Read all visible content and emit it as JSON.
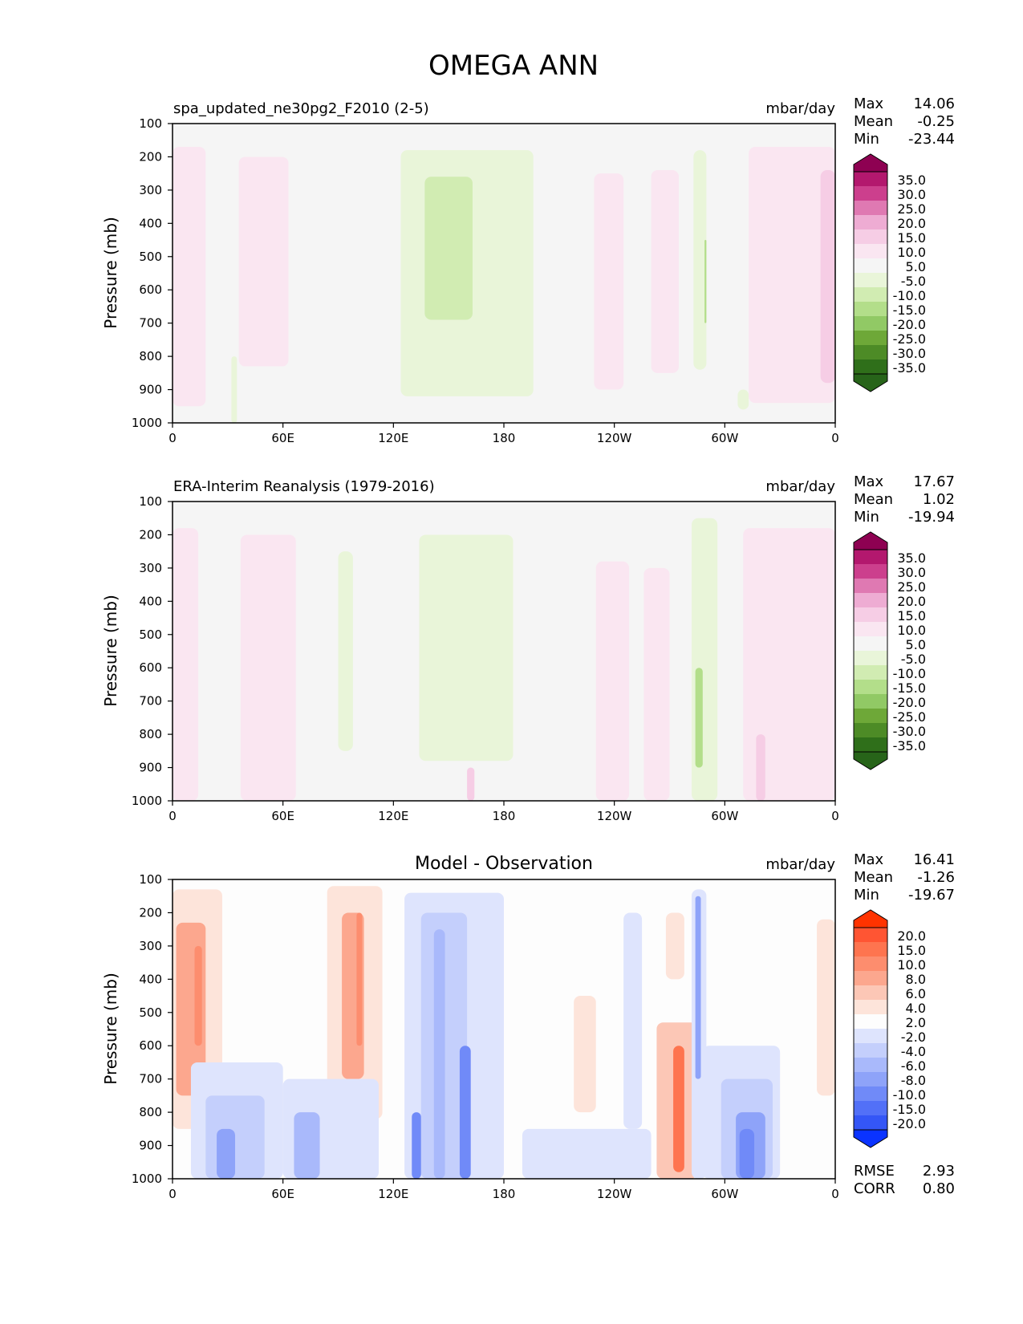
{
  "title": "OMEGA ANN",
  "axis": {
    "xticks": [
      "0",
      "60E",
      "120E",
      "180",
      "120W",
      "60W",
      "0"
    ],
    "yticks": [
      "100",
      "200",
      "300",
      "400",
      "500",
      "600",
      "700",
      "800",
      "900",
      "1000"
    ],
    "ylabel": "Pressure (mb)"
  },
  "chart_data": [
    {
      "type": "heatmap",
      "title": "spa_updated_ne30pg2_F2010 (2-5)",
      "units": "mbar/day",
      "stats": {
        "max": "14.06",
        "mean": "-0.25",
        "min": "-23.44"
      },
      "stat_labels": {
        "max": "Max",
        "mean": "Mean",
        "min": "Min"
      },
      "x_range_deg": [
        0,
        360
      ],
      "y_range_mb": [
        100,
        1000
      ],
      "colorbar": {
        "levels": [
          "35.0",
          "30.0",
          "25.0",
          "20.0",
          "15.0",
          "10.0",
          "5.0",
          "-5.0",
          "-10.0",
          "-15.0",
          "-20.0",
          "-25.0",
          "-30.0",
          "-35.0"
        ],
        "colors": [
          "#8e0152",
          "#b3186e",
          "#cc3f8d",
          "#df79b2",
          "#eeacd3",
          "#f6cde5",
          "#fae6f1",
          "#f5f5f5",
          "#e9f5d9",
          "#d1ecb2",
          "#b3de8a",
          "#91c965",
          "#6ea838",
          "#4d8b26",
          "#2f6f1a",
          "#276419"
        ]
      },
      "regions": [
        {
          "lon": [
            0,
            13
          ],
          "p": [
            200,
            820
          ],
          "v": 12
        },
        {
          "lon": [
            0,
            18
          ],
          "p": [
            170,
            950
          ],
          "v": 7
        },
        {
          "lon": [
            36,
            63
          ],
          "p": [
            200,
            830
          ],
          "v": 7
        },
        {
          "lon": [
            124,
            196
          ],
          "p": [
            180,
            920
          ],
          "v": -7
        },
        {
          "lon": [
            137,
            163
          ],
          "p": [
            260,
            690
          ],
          "v": -12
        },
        {
          "lon": [
            32,
            35
          ],
          "p": [
            800,
            1000
          ],
          "v": -7
        },
        {
          "lon": [
            229,
            245
          ],
          "p": [
            250,
            900
          ],
          "v": 7
        },
        {
          "lon": [
            260,
            275
          ],
          "p": [
            240,
            850
          ],
          "v": 7
        },
        {
          "lon": [
            283,
            290
          ],
          "p": [
            180,
            840
          ],
          "v": -7
        },
        {
          "lon": [
            289,
            290
          ],
          "p": [
            450,
            700
          ],
          "v": -16
        },
        {
          "lon": [
            307,
            313
          ],
          "p": [
            900,
            960
          ],
          "v": -7
        },
        {
          "lon": [
            313,
            360
          ],
          "p": [
            170,
            940
          ],
          "v": 7
        },
        {
          "lon": [
            352,
            360
          ],
          "p": [
            240,
            880
          ],
          "v": 12
        }
      ]
    },
    {
      "type": "heatmap",
      "title": "ERA-Interim Reanalysis (1979-2016)",
      "units": "mbar/day",
      "stats": {
        "max": "17.67",
        "mean": "1.02",
        "min": "-19.94"
      },
      "stat_labels": {
        "max": "Max",
        "mean": "Mean",
        "min": "Min"
      },
      "x_range_deg": [
        0,
        360
      ],
      "y_range_mb": [
        100,
        1000
      ],
      "colorbar": {
        "levels": [
          "35.0",
          "30.0",
          "25.0",
          "20.0",
          "15.0",
          "10.0",
          "5.0",
          "-5.0",
          "-10.0",
          "-15.0",
          "-20.0",
          "-25.0",
          "-30.0",
          "-35.0"
        ],
        "colors": [
          "#8e0152",
          "#b3186e",
          "#cc3f8d",
          "#df79b2",
          "#eeacd3",
          "#f6cde5",
          "#fae6f1",
          "#f5f5f5",
          "#e9f5d9",
          "#d1ecb2",
          "#b3de8a",
          "#91c965",
          "#6ea838",
          "#4d8b26",
          "#2f6f1a",
          "#276419"
        ]
      },
      "regions": [
        {
          "lon": [
            0,
            14
          ],
          "p": [
            180,
            1000
          ],
          "v": 7
        },
        {
          "lon": [
            37,
            67
          ],
          "p": [
            200,
            1000
          ],
          "v": 7
        },
        {
          "lon": [
            90,
            98
          ],
          "p": [
            250,
            850
          ],
          "v": -7
        },
        {
          "lon": [
            134,
            185
          ],
          "p": [
            200,
            880
          ],
          "v": -7
        },
        {
          "lon": [
            230,
            248
          ],
          "p": [
            280,
            1000
          ],
          "v": 7
        },
        {
          "lon": [
            256,
            270
          ],
          "p": [
            300,
            1000
          ],
          "v": 7
        },
        {
          "lon": [
            282,
            296
          ],
          "p": [
            150,
            1000
          ],
          "v": -7
        },
        {
          "lon": [
            284,
            288
          ],
          "p": [
            600,
            900
          ],
          "v": -16
        },
        {
          "lon": [
            310,
            360
          ],
          "p": [
            180,
            1000
          ],
          "v": 7
        },
        {
          "lon": [
            317,
            322
          ],
          "p": [
            800,
            1000
          ],
          "v": 12
        },
        {
          "lon": [
            160,
            164
          ],
          "p": [
            900,
            1000
          ],
          "v": 12
        }
      ]
    },
    {
      "type": "heatmap",
      "title": "Model - Observation",
      "units": "mbar/day",
      "stats": {
        "max": "16.41",
        "mean": "-1.26",
        "min": "-19.67"
      },
      "stat_labels": {
        "max": "Max",
        "mean": "Mean",
        "min": "Min"
      },
      "metrics": {
        "rmse": "2.93",
        "corr": "0.80"
      },
      "metric_labels": {
        "rmse": "RMSE",
        "corr": "CORR"
      },
      "x_range_deg": [
        0,
        360
      ],
      "y_range_mb": [
        100,
        1000
      ],
      "colorbar": {
        "levels": [
          "20.0",
          "15.0",
          "10.0",
          "8.0",
          "6.0",
          "4.0",
          "2.0",
          "-2.0",
          "-4.0",
          "-6.0",
          "-8.0",
          "-10.0",
          "-15.0",
          "-20.0"
        ],
        "colors": [
          "#ff3300",
          "#ff5533",
          "#fe744f",
          "#fd8d6e",
          "#fca78e",
          "#fcc7b6",
          "#fde4da",
          "#fdfdfd",
          "#dee4fd",
          "#c4cffc",
          "#a9b9fb",
          "#8ea3f9",
          "#708af8",
          "#5270f7",
          "#3456f6",
          "#0a33ff"
        ]
      },
      "regions": [
        {
          "lon": [
            0,
            27
          ],
          "p": [
            130,
            850
          ],
          "v": 3
        },
        {
          "lon": [
            2,
            18
          ],
          "p": [
            230,
            750
          ],
          "v": 7
        },
        {
          "lon": [
            12,
            16
          ],
          "p": [
            300,
            600
          ],
          "v": 9
        },
        {
          "lon": [
            84,
            114
          ],
          "p": [
            120,
            820
          ],
          "v": 3
        },
        {
          "lon": [
            92,
            104
          ],
          "p": [
            200,
            700
          ],
          "v": 7
        },
        {
          "lon": [
            100,
            103
          ],
          "p": [
            200,
            600
          ],
          "v": 9
        },
        {
          "lon": [
            126,
            180
          ],
          "p": [
            140,
            1000
          ],
          "v": -3
        },
        {
          "lon": [
            135,
            160
          ],
          "p": [
            200,
            1000
          ],
          "v": -5
        },
        {
          "lon": [
            142,
            148
          ],
          "p": [
            250,
            1000
          ],
          "v": -7
        },
        {
          "lon": [
            156,
            162
          ],
          "p": [
            600,
            1000
          ],
          "v": -12
        },
        {
          "lon": [
            130,
            135
          ],
          "p": [
            800,
            1000
          ],
          "v": -12
        },
        {
          "lon": [
            10,
            60
          ],
          "p": [
            650,
            1000
          ],
          "v": -3
        },
        {
          "lon": [
            18,
            50
          ],
          "p": [
            750,
            1000
          ],
          "v": -5
        },
        {
          "lon": [
            24,
            34
          ],
          "p": [
            850,
            1000
          ],
          "v": -9
        },
        {
          "lon": [
            60,
            112
          ],
          "p": [
            700,
            1000
          ],
          "v": -3
        },
        {
          "lon": [
            66,
            80
          ],
          "p": [
            800,
            1000
          ],
          "v": -7
        },
        {
          "lon": [
            190,
            260
          ],
          "p": [
            850,
            1000
          ],
          "v": -3
        },
        {
          "lon": [
            263,
            285
          ],
          "p": [
            530,
            1000
          ],
          "v": 4
        },
        {
          "lon": [
            272,
            278
          ],
          "p": [
            600,
            980
          ],
          "v": 12
        },
        {
          "lon": [
            282,
            290
          ],
          "p": [
            130,
            1000
          ],
          "v": -3
        },
        {
          "lon": [
            284,
            287
          ],
          "p": [
            150,
            700
          ],
          "v": -9
        },
        {
          "lon": [
            288,
            330
          ],
          "p": [
            600,
            1000
          ],
          "v": -3
        },
        {
          "lon": [
            298,
            326
          ],
          "p": [
            700,
            1000
          ],
          "v": -5
        },
        {
          "lon": [
            306,
            322
          ],
          "p": [
            800,
            1000
          ],
          "v": -9
        },
        {
          "lon": [
            308,
            316
          ],
          "p": [
            850,
            1000
          ],
          "v": -13
        },
        {
          "lon": [
            245,
            255
          ],
          "p": [
            200,
            850
          ],
          "v": -3
        },
        {
          "lon": [
            350,
            360
          ],
          "p": [
            220,
            750
          ],
          "v": 3
        },
        {
          "lon": [
            218,
            230
          ],
          "p": [
            450,
            800
          ],
          "v": 3
        },
        {
          "lon": [
            268,
            278
          ],
          "p": [
            200,
            400
          ],
          "v": 3
        }
      ]
    }
  ]
}
